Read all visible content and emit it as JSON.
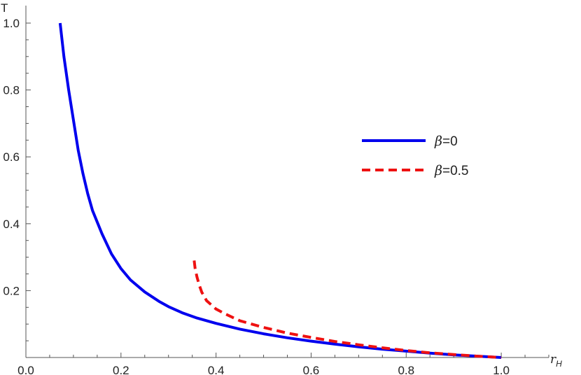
{
  "chart_data": {
    "type": "line",
    "title": "",
    "xlabel": "r",
    "xlabel_sub": "H",
    "ylabel": "T",
    "xlim": [
      0.0,
      1.1
    ],
    "ylim": [
      0.0,
      1.0
    ],
    "x_ticks": [
      "0.0",
      "0.2",
      "0.4",
      "0.6",
      "0.8",
      "1.0"
    ],
    "y_ticks": [
      "0.2",
      "0.4",
      "0.6",
      "0.8",
      "1.0"
    ],
    "grid": false,
    "legend_position": "right",
    "series": [
      {
        "name": "β=0",
        "legend_symbol": "β",
        "legend_value": "=0",
        "color": "#0000ee",
        "style": "solid",
        "x": [
          0.072,
          0.08,
          0.09,
          0.1,
          0.11,
          0.12,
          0.13,
          0.14,
          0.16,
          0.18,
          0.2,
          0.22,
          0.25,
          0.28,
          0.3,
          0.33,
          0.36,
          0.4,
          0.45,
          0.5,
          0.55,
          0.6,
          0.65,
          0.7,
          0.75,
          0.8,
          0.85,
          0.9,
          0.95,
          1.0
        ],
        "y": [
          1.0,
          0.9,
          0.8,
          0.71,
          0.62,
          0.55,
          0.49,
          0.44,
          0.37,
          0.31,
          0.266,
          0.232,
          0.196,
          0.168,
          0.152,
          0.133,
          0.118,
          0.102,
          0.085,
          0.071,
          0.059,
          0.049,
          0.04,
          0.032,
          0.025,
          0.019,
          0.013,
          0.008,
          0.004,
          0.0
        ]
      },
      {
        "name": "β=0.5",
        "legend_symbol": "β",
        "legend_value": "=0.5",
        "color": "#ee1111",
        "style": "dashed",
        "x": [
          0.354,
          0.356,
          0.36,
          0.365,
          0.37,
          0.38,
          0.4,
          0.42,
          0.45,
          0.5,
          0.55,
          0.6,
          0.65,
          0.7,
          0.75,
          0.8,
          0.85,
          0.9,
          0.95,
          1.0
        ],
        "y": [
          0.29,
          0.265,
          0.24,
          0.215,
          0.195,
          0.17,
          0.145,
          0.13,
          0.11,
          0.09,
          0.073,
          0.06,
          0.048,
          0.038,
          0.029,
          0.021,
          0.014,
          0.009,
          0.004,
          0.0
        ]
      }
    ]
  }
}
